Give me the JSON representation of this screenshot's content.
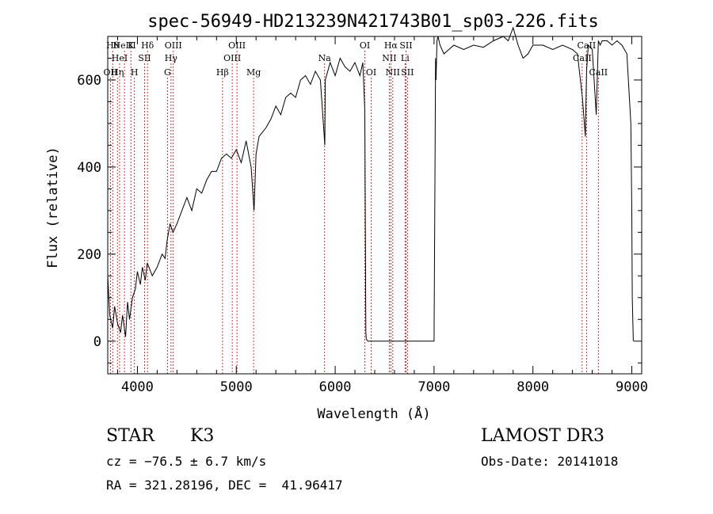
{
  "chart_data": {
    "type": "line",
    "title": "spec-56949-HD213239N421743B01_sp03-226.fits",
    "xlabel": "Wavelength (Å)",
    "ylabel": "Flux (relative)",
    "xlim": [
      3700,
      9100
    ],
    "ylim": [
      -75,
      700
    ],
    "xticks": [
      4000,
      5000,
      6000,
      7000,
      8000,
      9000
    ],
    "yticks": [
      0,
      200,
      400,
      600
    ],
    "grid": false,
    "line_color": "#000000",
    "marker_color": "#cc0000",
    "series": [
      {
        "x": [
          3700,
          3720,
          3750,
          3770,
          3800,
          3830,
          3850,
          3880,
          3900,
          3920,
          3950,
          3980,
          4000,
          4030,
          4050,
          4080,
          4100,
          4150,
          4200,
          4250,
          4280,
          4300,
          4330,
          4360,
          4400,
          4450,
          4500,
          4550,
          4600,
          4650,
          4700,
          4750,
          4800,
          4850,
          4900,
          4950,
          5000,
          5050,
          5100,
          5150,
          5180,
          5200,
          5230,
          5300,
          5350,
          5400,
          5450,
          5500,
          5550,
          5600,
          5650,
          5700,
          5750,
          5800,
          5850,
          5890,
          5895,
          5900,
          5950,
          6000,
          6050,
          6100,
          6150,
          6200,
          6250,
          6280,
          6300,
          6310,
          6315,
          6330,
          6345,
          6400,
          6600,
          6800,
          7000,
          7010,
          7015,
          7020,
          7030,
          7040,
          7060,
          7100,
          7150,
          7200,
          7300,
          7400,
          7500,
          7600,
          7700,
          7750,
          7800,
          7850,
          7900,
          7950,
          8000,
          8100,
          8200,
          8300,
          8400,
          8450,
          8500,
          8530,
          8542,
          8560,
          8600,
          8640,
          8662,
          8680,
          8700,
          8750,
          8800,
          8850,
          8900,
          8950,
          8990,
          9000,
          9005,
          9015
        ],
        "values": [
          150,
          60,
          30,
          80,
          40,
          20,
          60,
          10,
          90,
          50,
          100,
          120,
          160,
          130,
          170,
          140,
          180,
          150,
          170,
          200,
          190,
          230,
          270,
          250,
          270,
          300,
          330,
          300,
          350,
          340,
          370,
          390,
          390,
          420,
          430,
          420,
          440,
          410,
          460,
          400,
          300,
          430,
          470,
          490,
          510,
          540,
          520,
          560,
          570,
          560,
          600,
          610,
          590,
          620,
          600,
          470,
          450,
          600,
          640,
          610,
          650,
          630,
          620,
          640,
          610,
          640,
          530,
          20,
          5,
          0,
          0,
          0,
          0,
          0,
          0,
          400,
          650,
          600,
          690,
          700,
          680,
          660,
          670,
          680,
          670,
          680,
          675,
          690,
          700,
          690,
          720,
          680,
          650,
          660,
          680,
          680,
          670,
          680,
          670,
          660,
          560,
          470,
          620,
          680,
          670,
          520,
          690,
          680,
          690,
          690,
          680,
          690,
          680,
          660,
          500,
          300,
          100,
          0
        ]
      }
    ],
    "lines": [
      {
        "x": 3727,
        "label": "OII",
        "row": 2
      },
      {
        "x": 3750,
        "label": "Hθ",
        "row": 0
      },
      {
        "x": 3798,
        "label": "Hη",
        "row": 2
      },
      {
        "x": 3820,
        "label": "HeI",
        "row": 1
      },
      {
        "x": 3869,
        "label": "NeIII",
        "row": 0
      },
      {
        "x": 3934,
        "label": "K",
        "row": 0
      },
      {
        "x": 3970,
        "label": "H",
        "row": 2
      },
      {
        "x": 4072,
        "label": "SII",
        "row": 1
      },
      {
        "x": 4102,
        "label": "Hδ",
        "row": 0
      },
      {
        "x": 4304,
        "label": "G",
        "row": 2
      },
      {
        "x": 4340,
        "label": "Hγ",
        "row": 1
      },
      {
        "x": 4363,
        "label": "OIII",
        "row": 0
      },
      {
        "x": 4861,
        "label": "Hβ",
        "row": 2
      },
      {
        "x": 4959,
        "label": "OIII",
        "row": 1
      },
      {
        "x": 5007,
        "label": "OIII",
        "row": 0
      },
      {
        "x": 5175,
        "label": "Mg",
        "row": 2
      },
      {
        "x": 5893,
        "label": "Na",
        "row": 1
      },
      {
        "x": 6300,
        "label": "OI",
        "row": 0
      },
      {
        "x": 6364,
        "label": "OI",
        "row": 2
      },
      {
        "x": 6548,
        "label": "NII",
        "row": 1
      },
      {
        "x": 6563,
        "label": "Hα",
        "row": 0
      },
      {
        "x": 6583,
        "label": "NII",
        "row": 2
      },
      {
        "x": 6707,
        "label": "Li",
        "row": 1
      },
      {
        "x": 6716,
        "label": "SII",
        "row": 0
      },
      {
        "x": 6731,
        "label": "SII",
        "row": 2
      },
      {
        "x": 8498,
        "label": "CaII",
        "row": 1
      },
      {
        "x": 8542,
        "label": "CaII",
        "row": 0
      },
      {
        "x": 8662,
        "label": "CaII",
        "row": 2
      }
    ]
  },
  "info": {
    "object_type": "STAR",
    "spectral_type": "K3",
    "redshift": "cz = −76.5 ± 6.7 km/s",
    "survey": "LAMOST DR3",
    "obs_date": "Obs-Date: 20141018",
    "coordinates": "RA = 321.28196, DEC =  41.96417"
  }
}
